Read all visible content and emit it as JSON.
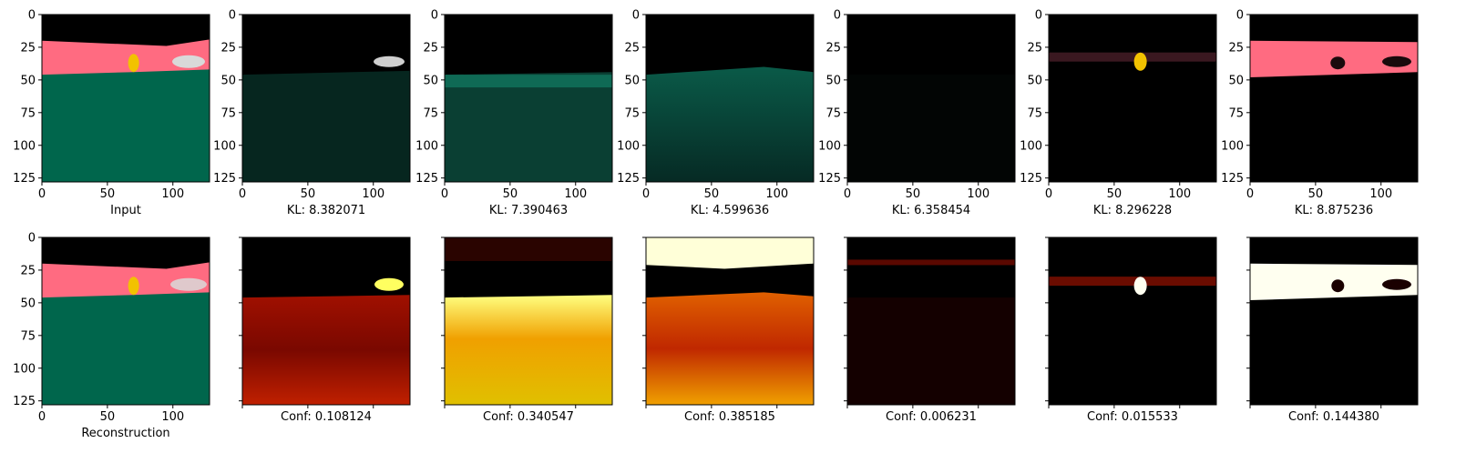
{
  "figure": {
    "image_size": [
      128,
      128
    ],
    "axis_ticks": [
      "0",
      "25",
      "50",
      "75",
      "100",
      "125"
    ],
    "x_ticks": [
      "0",
      "50",
      "100"
    ],
    "top_row": {
      "captions": [
        "Input",
        "KL: 8.382071",
        "KL: 7.390463",
        "KL: 4.599636",
        "KL: 6.358454",
        "KL: 8.296228",
        "KL: 8.875236"
      ]
    },
    "bottom_row": {
      "captions": [
        "Reconstruction",
        "Conf: 0.108124",
        "Conf: 0.340547",
        "Conf: 0.385185",
        "Conf: 0.006231",
        "Conf: 0.015533",
        "Conf: 0.144380"
      ]
    }
  },
  "colors": {
    "sky": "#000000",
    "road": "#ff6b81",
    "ground": "#00664c",
    "sign": "#f2c200",
    "car": "#d9d9d9",
    "heat_low": "#000000",
    "heat_mid": "#c01800",
    "heat_high": "#ffff50",
    "heat_max": "#ffffff"
  }
}
